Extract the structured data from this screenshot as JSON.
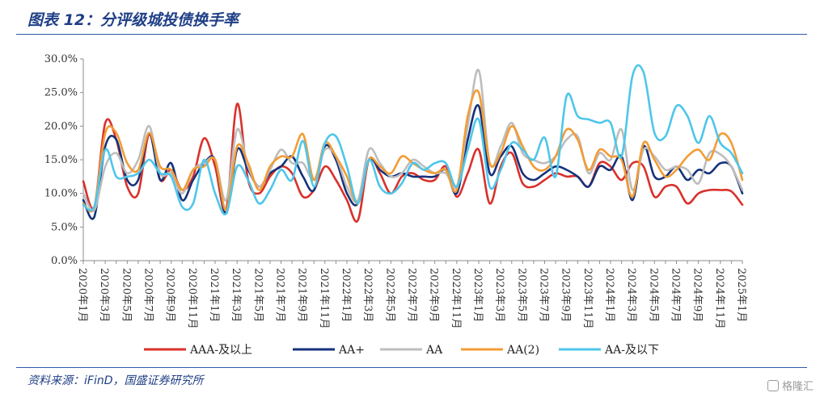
{
  "figure": {
    "title": "图表 12：分评级城投债换手率",
    "source": "资料来源：iFinD，国盛证券研究所",
    "watermark": "格隆汇"
  },
  "chart_data": {
    "type": "line",
    "title": "分评级城投债换手率",
    "xlabel": "",
    "ylabel": "",
    "ylim": [
      0,
      30
    ],
    "y_ticks": [
      "0.0%",
      "5.0%",
      "10.0%",
      "15.0%",
      "20.0%",
      "25.0%",
      "30.0%"
    ],
    "x_tick_labels": [
      "2020年1月",
      "2020年3月",
      "2020年5月",
      "2020年7月",
      "2020年9月",
      "2020年11月",
      "2021年1月",
      "2021年3月",
      "2021年5月",
      "2021年7月",
      "2021年9月",
      "2021年11月",
      "2022年1月",
      "2022年3月",
      "2022年5月",
      "2022年7月",
      "2022年9月",
      "2022年11月",
      "2023年1月",
      "2023年3月",
      "2023年5月",
      "2023年7月",
      "2023年9月",
      "2023年11月",
      "2024年1月",
      "2024年3月",
      "2024年5月",
      "2024年7月",
      "2024年9月",
      "2024年11月",
      "2025年1月"
    ],
    "categories": [
      "2020-01",
      "2020-02",
      "2020-03",
      "2020-04",
      "2020-05",
      "2020-06",
      "2020-07",
      "2020-08",
      "2020-09",
      "2020-10",
      "2020-11",
      "2020-12",
      "2021-01",
      "2021-02",
      "2021-03",
      "2021-04",
      "2021-05",
      "2021-06",
      "2021-07",
      "2021-08",
      "2021-09",
      "2021-10",
      "2021-11",
      "2021-12",
      "2022-01",
      "2022-02",
      "2022-03",
      "2022-04",
      "2022-05",
      "2022-06",
      "2022-07",
      "2022-08",
      "2022-09",
      "2022-10",
      "2022-11",
      "2022-12",
      "2023-01",
      "2023-02",
      "2023-03",
      "2023-04",
      "2023-05",
      "2023-06",
      "2023-07",
      "2023-08",
      "2023-09",
      "2023-10",
      "2023-11",
      "2023-12",
      "2024-01",
      "2024-02",
      "2024-03",
      "2024-04",
      "2024-05",
      "2024-06",
      "2024-07",
      "2024-08",
      "2024-09",
      "2024-10",
      "2024-11",
      "2024-12",
      "2025-01"
    ],
    "legend_position": "bottom",
    "series": [
      {
        "name": "AAA-及以上",
        "color": "#d9312b",
        "values": [
          11.8,
          8.0,
          20.5,
          18.0,
          11.0,
          10.0,
          18.8,
          12.0,
          13.5,
          10.5,
          12.5,
          18.2,
          14.0,
          7.5,
          23.3,
          12.0,
          10.0,
          12.5,
          14.0,
          13.0,
          9.5,
          10.5,
          14.0,
          12.0,
          9.0,
          6.0,
          15.0,
          13.0,
          10.0,
          12.5,
          13.0,
          12.0,
          12.0,
          14.0,
          9.5,
          13.0,
          16.5,
          8.5,
          14.0,
          16.0,
          11.5,
          11.0,
          12.0,
          13.0,
          12.5,
          12.5,
          11.0,
          14.5,
          14.0,
          12.0,
          14.5,
          14.0,
          9.5,
          11.0,
          11.0,
          8.5,
          10.0,
          10.5,
          10.5,
          10.3,
          8.3
        ]
      },
      {
        "name": "AA+",
        "color": "#16327a",
        "values": [
          9.0,
          6.5,
          17.0,
          18.0,
          12.0,
          12.0,
          19.0,
          12.0,
          14.5,
          9.0,
          12.0,
          14.5,
          15.0,
          7.0,
          16.5,
          13.5,
          11.0,
          13.0,
          14.0,
          15.5,
          12.5,
          10.5,
          17.0,
          15.0,
          10.0,
          8.5,
          15.0,
          13.5,
          12.5,
          13.0,
          12.5,
          12.5,
          12.5,
          13.5,
          10.0,
          18.0,
          23.0,
          13.0,
          15.5,
          17.0,
          13.0,
          12.0,
          13.0,
          14.0,
          13.5,
          12.5,
          11.0,
          14.0,
          13.5,
          15.5,
          9.0,
          17.0,
          12.5,
          12.5,
          14.0,
          12.0,
          13.5,
          13.0,
          14.5,
          14.0,
          10.0
        ]
      },
      {
        "name": "AA",
        "color": "#bdbdbd",
        "values": [
          10.0,
          7.5,
          14.0,
          16.0,
          13.0,
          15.0,
          20.0,
          13.0,
          13.0,
          10.0,
          13.5,
          14.5,
          15.0,
          9.0,
          19.5,
          14.0,
          11.0,
          13.5,
          16.5,
          14.5,
          14.5,
          12.0,
          16.5,
          15.5,
          11.0,
          9.0,
          16.5,
          14.5,
          12.5,
          13.0,
          15.0,
          14.0,
          13.0,
          13.0,
          11.0,
          20.0,
          28.3,
          14.5,
          17.0,
          20.5,
          16.0,
          15.0,
          14.5,
          15.5,
          18.0,
          18.5,
          13.0,
          16.0,
          15.0,
          19.5,
          10.5,
          16.5,
          15.5,
          13.5,
          14.0,
          13.5,
          11.5,
          16.0,
          15.8,
          14.0,
          10.5
        ]
      },
      {
        "name": "AA(2)",
        "color": "#f39c35",
        "values": [
          8.5,
          8.0,
          19.0,
          19.0,
          14.5,
          13.5,
          19.0,
          14.0,
          13.5,
          10.5,
          13.5,
          14.0,
          15.0,
          7.5,
          17.0,
          14.5,
          10.5,
          14.0,
          15.5,
          15.5,
          18.8,
          12.0,
          17.5,
          15.5,
          12.5,
          8.5,
          15.0,
          14.0,
          13.0,
          15.5,
          14.5,
          13.5,
          13.0,
          13.5,
          10.5,
          21.5,
          25.0,
          14.5,
          16.0,
          20.0,
          17.0,
          14.0,
          13.5,
          15.5,
          19.5,
          18.0,
          13.5,
          16.5,
          15.5,
          15.0,
          9.5,
          17.5,
          15.0,
          12.5,
          13.5,
          15.5,
          16.5,
          15.0,
          18.8,
          17.5,
          12.0
        ]
      },
      {
        "name": "AA-及以下",
        "color": "#4ec6ea",
        "values": [
          8.3,
          8.0,
          16.5,
          12.5,
          12.5,
          13.0,
          15.0,
          13.0,
          12.5,
          8.0,
          8.5,
          15.0,
          10.0,
          7.0,
          14.0,
          12.0,
          8.5,
          10.5,
          13.5,
          12.0,
          17.8,
          11.0,
          17.5,
          18.5,
          14.0,
          8.5,
          15.0,
          11.0,
          10.0,
          11.5,
          14.5,
          13.5,
          14.5,
          14.5,
          11.0,
          16.5,
          21.0,
          11.0,
          13.5,
          17.5,
          16.5,
          15.0,
          18.3,
          12.5,
          24.5,
          21.5,
          21.0,
          20.5,
          20.5,
          15.5,
          27.5,
          28.0,
          19.0,
          18.5,
          23.0,
          21.5,
          17.5,
          21.5,
          17.5,
          16.0,
          13.0
        ]
      }
    ]
  }
}
